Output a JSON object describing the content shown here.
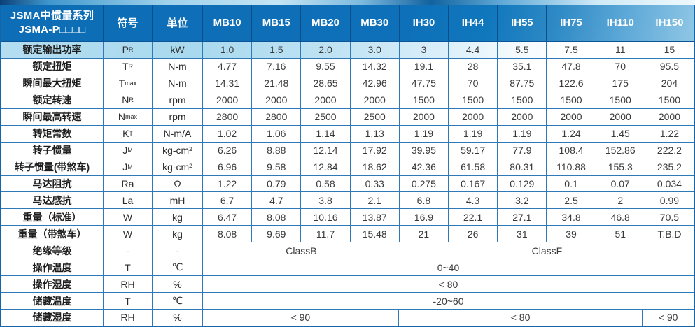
{
  "table": {
    "corner_title_line1": "JSMA中惯量系列",
    "corner_title_line2": "JSMA-P□□□□",
    "symbol_header": "符号",
    "unit_header": "单位",
    "models": [
      "MB10",
      "MB15",
      "MB20",
      "MB30",
      "IH30",
      "IH44",
      "IH55",
      "IH75",
      "IH110",
      "IH150"
    ],
    "rows": [
      {
        "label": "额定输出功率",
        "symbol": "P",
        "symbol_sub": "R",
        "unit": "kW",
        "values": [
          "1.0",
          "1.5",
          "2.0",
          "3.0",
          "3",
          "4.4",
          "5.5",
          "7.5",
          "11",
          "15"
        ]
      },
      {
        "label": "额定扭矩",
        "symbol": "T",
        "symbol_sub": "R",
        "unit": "N-m",
        "values": [
          "4.77",
          "7.16",
          "9.55",
          "14.32",
          "19.1",
          "28",
          "35.1",
          "47.8",
          "70",
          "95.5"
        ]
      },
      {
        "label": "瞬间最大扭矩",
        "symbol": "T",
        "symbol_sub": "max",
        "unit": "N-m",
        "values": [
          "14.31",
          "21.48",
          "28.65",
          "42.96",
          "47.75",
          "70",
          "87.75",
          "122.6",
          "175",
          "204"
        ]
      },
      {
        "label": "额定转速",
        "symbol": "N",
        "symbol_sub": "R",
        "unit": "rpm",
        "values": [
          "2000",
          "2000",
          "2000",
          "2000",
          "1500",
          "1500",
          "1500",
          "1500",
          "1500",
          "1500"
        ]
      },
      {
        "label": "瞬间最高转速",
        "symbol": "N",
        "symbol_sub": "max",
        "unit": "rpm",
        "values": [
          "2800",
          "2800",
          "2500",
          "2500",
          "2000",
          "2000",
          "2000",
          "2000",
          "2000",
          "2000"
        ]
      },
      {
        "label": "转矩常数",
        "symbol": "K",
        "symbol_sub": "T",
        "unit": "N-m/A",
        "values": [
          "1.02",
          "1.06",
          "1.14",
          "1.13",
          "1.19",
          "1.19",
          "1.19",
          "1.24",
          "1.45",
          "1.22"
        ]
      },
      {
        "label": "转子惯量",
        "symbol": "J",
        "symbol_sub": "M",
        "unit": "kg-cm²",
        "values": [
          "6.26",
          "8.88",
          "12.14",
          "17.92",
          "39.95",
          "59.17",
          "77.9",
          "108.4",
          "152.86",
          "222.2"
        ]
      },
      {
        "label": "转子惯量(带煞车)",
        "symbol": "J",
        "symbol_sub": "M",
        "unit": "kg-cm²",
        "values": [
          "6.96",
          "9.58",
          "12.84",
          "18.62",
          "42.36",
          "61.58",
          "80.31",
          "110.88",
          "155.3",
          "235.2"
        ]
      },
      {
        "label": "马达阻抗",
        "symbol": "Ra",
        "symbol_sub": "",
        "unit": "Ω",
        "values": [
          "1.22",
          "0.79",
          "0.58",
          "0.33",
          "0.275",
          "0.167",
          "0.129",
          "0.1",
          "0.07",
          "0.034"
        ]
      },
      {
        "label": "马达感抗",
        "symbol": "La",
        "symbol_sub": "",
        "unit": "mH",
        "values": [
          "6.7",
          "4.7",
          "3.8",
          "2.1",
          "6.8",
          "4.3",
          "3.2",
          "2.5",
          "2",
          "0.99"
        ]
      },
      {
        "label": "重量（标准）",
        "symbol": "W",
        "symbol_sub": "",
        "unit": "kg",
        "values": [
          "6.47",
          "8.08",
          "10.16",
          "13.87",
          "16.9",
          "22.1",
          "27.1",
          "34.8",
          "46.8",
          "70.5"
        ]
      },
      {
        "label": "重量（带煞车）",
        "symbol": "W",
        "symbol_sub": "",
        "unit": "kg",
        "values": [
          "8.08",
          "9.69",
          "11.7",
          "15.48",
          "21",
          "26",
          "31",
          "39",
          "51",
          "T.B.D"
        ]
      },
      {
        "label": "绝缘等级",
        "symbol": "-",
        "symbol_sub": "",
        "unit": "-",
        "spans": [
          {
            "text": "ClassB",
            "cols": 4
          },
          {
            "text": "ClassF",
            "cols": 6
          }
        ]
      },
      {
        "label": "操作温度",
        "symbol": "T",
        "symbol_sub": "",
        "unit": "℃",
        "spans": [
          {
            "text": "0~40",
            "cols": 10
          }
        ]
      },
      {
        "label": "操作湿度",
        "symbol": "RH",
        "symbol_sub": "",
        "unit": "%",
        "spans": [
          {
            "text": "< 80",
            "cols": 10
          }
        ]
      },
      {
        "label": "储藏温度",
        "symbol": "T",
        "symbol_sub": "",
        "unit": "℃",
        "spans": [
          {
            "text": "-20~60",
            "cols": 10
          }
        ]
      },
      {
        "label": "储藏湿度",
        "symbol": "RH",
        "symbol_sub": "",
        "unit": "%",
        "spans": [
          {
            "text": "< 90",
            "cols": 4
          },
          {
            "text": "< 80",
            "cols": 5
          },
          {
            "text": "< 90",
            "cols": 1
          }
        ]
      }
    ],
    "colors": {
      "header_bg": "#0e70b8",
      "header_separator": "#0a4e8c",
      "body_line": "#2e7ab8",
      "outer_border": "#1565a8",
      "swoosh_light": "#aadcf0",
      "header_text": "#ffffff",
      "body_text": "#3a3a3a"
    }
  }
}
